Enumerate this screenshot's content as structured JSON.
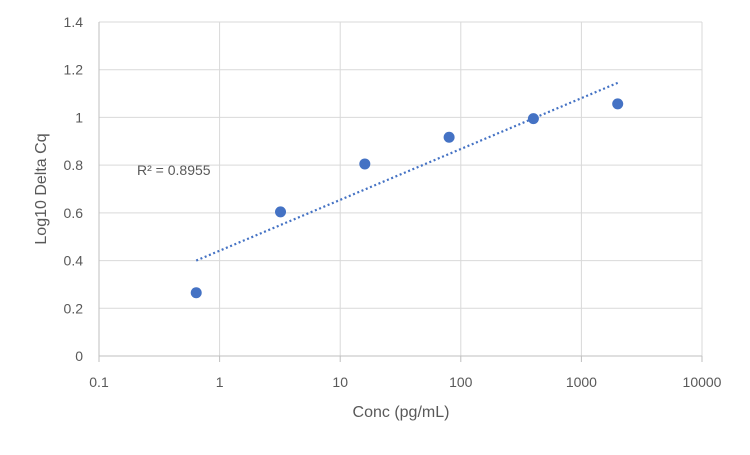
{
  "chart_data": {
    "type": "scatter",
    "title": "",
    "xlabel": "Conc (pg/mL)",
    "ylabel": "Log10 Delta Cq",
    "x_scale": "log",
    "xlim": [
      0.1,
      10000
    ],
    "ylim": [
      0,
      1.4
    ],
    "x_ticks": [
      "0.1",
      "1",
      "10",
      "100",
      "1000",
      "10000"
    ],
    "y_ticks": [
      "0",
      "0.2",
      "0.4",
      "0.6",
      "0.8",
      "1",
      "1.2",
      "1.4"
    ],
    "grid": true,
    "legend": "none",
    "series": [
      {
        "x": [
          0.64,
          3.2,
          16,
          80,
          400,
          2000
        ],
        "y": [
          0.265,
          0.604,
          0.805,
          0.917,
          0.995,
          1.057
        ],
        "color": "#4472C4"
      }
    ],
    "trendline": {
      "type": "logarithmic",
      "style": "dotted",
      "color": "#4472C4",
      "x_start": 0.64,
      "x_end": 2000,
      "y_start": 0.4,
      "y_end": 1.145
    },
    "annotations": [
      {
        "text": "R² = 0.8955"
      }
    ]
  }
}
